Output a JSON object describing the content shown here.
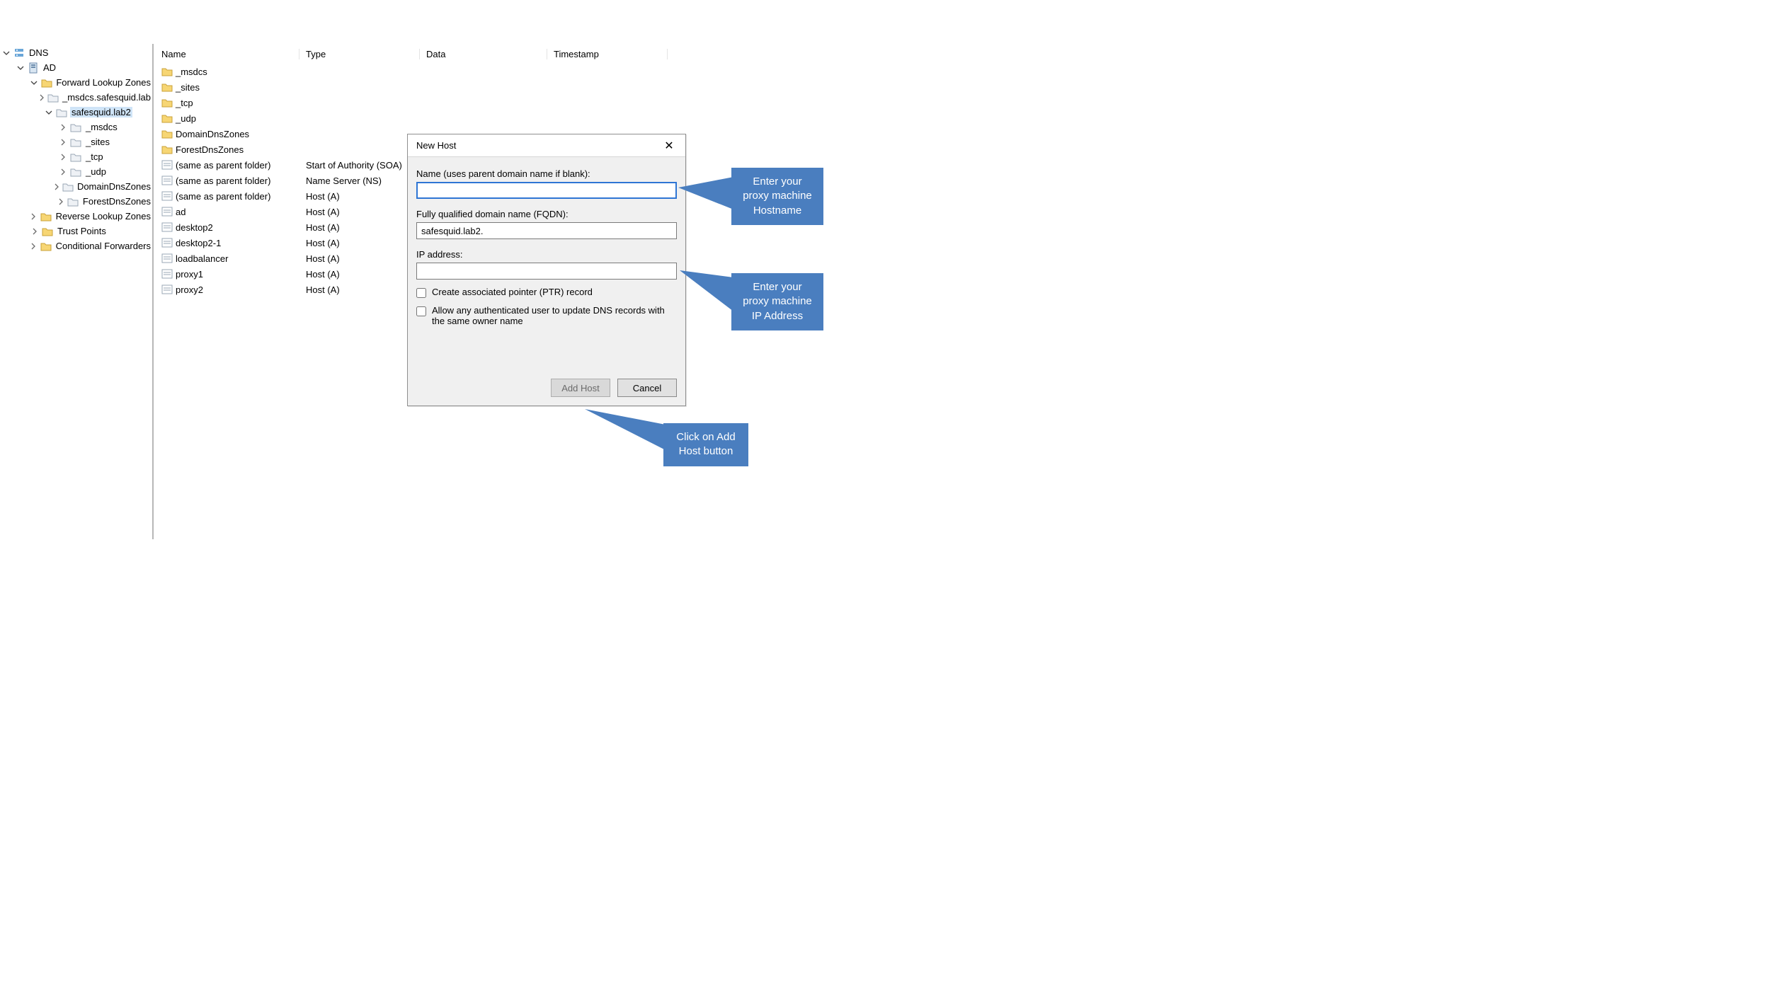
{
  "tree": {
    "root_label": "DNS",
    "items": [
      {
        "depth": 0,
        "exp": "open",
        "icon": "dns",
        "label": "DNS"
      },
      {
        "depth": 1,
        "exp": "open",
        "icon": "server",
        "label": "AD"
      },
      {
        "depth": 2,
        "exp": "open",
        "icon": "folder",
        "label": "Forward Lookup Zones"
      },
      {
        "depth": 3,
        "exp": "closed",
        "icon": "zone",
        "label": "_msdcs.safesquid.lab"
      },
      {
        "depth": 3,
        "exp": "open",
        "icon": "zone",
        "label": "safesquid.lab2",
        "selected": true
      },
      {
        "depth": 4,
        "exp": "closed",
        "icon": "zone",
        "label": "_msdcs"
      },
      {
        "depth": 4,
        "exp": "closed",
        "icon": "zone",
        "label": "_sites"
      },
      {
        "depth": 4,
        "exp": "closed",
        "icon": "zone",
        "label": "_tcp"
      },
      {
        "depth": 4,
        "exp": "closed",
        "icon": "zone",
        "label": "_udp"
      },
      {
        "depth": 4,
        "exp": "closed",
        "icon": "zone",
        "label": "DomainDnsZones"
      },
      {
        "depth": 4,
        "exp": "closed",
        "icon": "zone",
        "label": "ForestDnsZones"
      },
      {
        "depth": 2,
        "exp": "closed",
        "icon": "folder",
        "label": "Reverse Lookup Zones"
      },
      {
        "depth": 2,
        "exp": "closed",
        "icon": "folder",
        "label": "Trust Points"
      },
      {
        "depth": 2,
        "exp": "closed",
        "icon": "folder",
        "label": "Conditional Forwarders"
      }
    ]
  },
  "list": {
    "columns": {
      "name": "Name",
      "type": "Type",
      "data": "Data",
      "timestamp": "Timestamp"
    },
    "rows": [
      {
        "icon": "folder",
        "name": "_msdcs",
        "type": "",
        "data": "",
        "ts": ""
      },
      {
        "icon": "folder",
        "name": "_sites",
        "type": "",
        "data": "",
        "ts": ""
      },
      {
        "icon": "folder",
        "name": "_tcp",
        "type": "",
        "data": "",
        "ts": ""
      },
      {
        "icon": "folder",
        "name": "_udp",
        "type": "",
        "data": "",
        "ts": ""
      },
      {
        "icon": "folder",
        "name": "DomainDnsZones",
        "type": "",
        "data": "",
        "ts": ""
      },
      {
        "icon": "folder",
        "name": "ForestDnsZones",
        "type": "",
        "data": "",
        "ts": ""
      },
      {
        "icon": "rec",
        "name": "(same as parent folder)",
        "type": "Start of Authority (SOA)",
        "data": "",
        "ts": ""
      },
      {
        "icon": "rec",
        "name": "(same as parent folder)",
        "type": "Name Server (NS)",
        "data": "",
        "ts": ""
      },
      {
        "icon": "rec",
        "name": "(same as parent folder)",
        "type": "Host (A)",
        "data": "",
        "ts": ""
      },
      {
        "icon": "rec",
        "name": "ad",
        "type": "Host (A)",
        "data": "",
        "ts": ""
      },
      {
        "icon": "rec",
        "name": "desktop2",
        "type": "Host (A)",
        "data": "",
        "ts": ""
      },
      {
        "icon": "rec",
        "name": "desktop2-1",
        "type": "Host (A)",
        "data": "",
        "ts": ""
      },
      {
        "icon": "rec",
        "name": "loadbalancer",
        "type": "Host (A)",
        "data": "",
        "ts": ""
      },
      {
        "icon": "rec",
        "name": "proxy1",
        "type": "Host (A)",
        "data": "",
        "ts": ""
      },
      {
        "icon": "rec",
        "name": "proxy2",
        "type": "Host (A)",
        "data": "",
        "ts": ""
      }
    ]
  },
  "dialog": {
    "title": "New Host",
    "name_label": "Name (uses parent domain name if blank):",
    "name_value": "",
    "fqdn_label": "Fully qualified domain name (FQDN):",
    "fqdn_value": "safesquid.lab2.",
    "ip_label": "IP address:",
    "ip_value": "",
    "chk_ptr": "Create associated pointer (PTR) record",
    "chk_allow": "Allow any authenticated user to update DNS records with the same owner name",
    "btn_add": "Add Host",
    "btn_cancel": "Cancel"
  },
  "callouts": {
    "hostname": "Enter your proxy machine Hostname",
    "ip": "Enter your proxy machine IP Address",
    "addhost": "Click on Add Host button"
  },
  "style": {
    "callout_bg": "#4a7ebf",
    "callout_fg": "#ffffff",
    "tree_border": "#b7b7b7",
    "selected_bg": "#cfe4f7",
    "dialog_bg": "#f0f0f0",
    "dialog_border": "#8f8f8f",
    "input_border": "#7a7a7a",
    "focus_border": "#2e75d4",
    "btn_bg": "#e1e1e1",
    "btn_border": "#8a8a8a"
  }
}
